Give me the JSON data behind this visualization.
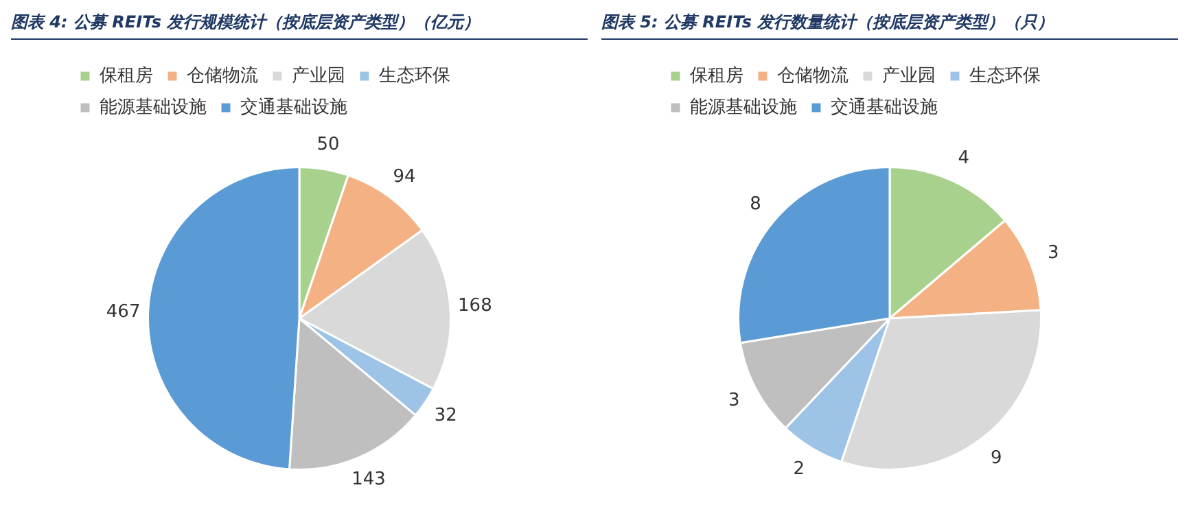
{
  "chart_data": [
    {
      "type": "pie",
      "title": "图表 4:  公募 REITs 发行规模统计（按底层资产类型）（亿元）",
      "categories": [
        "保租房",
        "仓储物流",
        "产业园",
        "生态环保",
        "能源基础设施",
        "交通基础设施"
      ],
      "values": [
        50,
        94,
        168,
        32,
        143,
        467
      ],
      "colors": [
        "#a9d18e",
        "#f4b183",
        "#d9d9d9",
        "#9dc3e6",
        "#bfbfbf",
        "#5b9bd5"
      ],
      "data_labels": true,
      "legend": "top left"
    },
    {
      "type": "pie",
      "title": "图表 5:  公募 REITs 发行数量统计（按底层资产类型）（只）",
      "categories": [
        "保租房",
        "仓储物流",
        "产业园",
        "生态环保",
        "能源基础设施",
        "交通基础设施"
      ],
      "values": [
        4,
        3,
        9,
        2,
        3,
        8
      ],
      "colors": [
        "#a9d18e",
        "#f4b183",
        "#d9d9d9",
        "#9dc3e6",
        "#bfbfbf",
        "#5b9bd5"
      ],
      "data_labels": true,
      "legend": "top left"
    }
  ]
}
